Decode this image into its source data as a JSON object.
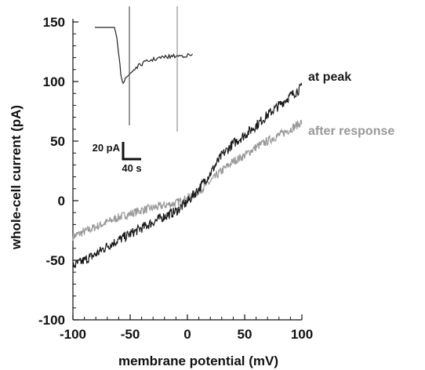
{
  "chart_data": {
    "type": "line",
    "xlabel": "membrane potential (mV)",
    "ylabel": "whole-cell current (pA)",
    "xlim": [
      -100,
      100
    ],
    "ylim": [
      -100,
      150
    ],
    "x_ticks": [
      -100,
      -50,
      0,
      50,
      100
    ],
    "y_ticks": [
      -100,
      -50,
      0,
      50,
      100,
      150
    ],
    "grid": false,
    "series": [
      {
        "name": "at peak",
        "color": "#1a1a1a",
        "x": [
          -100,
          -90,
          -80,
          -70,
          -60,
          -50,
          -40,
          -30,
          -20,
          -10,
          0,
          10,
          20,
          30,
          40,
          50,
          60,
          70,
          80,
          90,
          100
        ],
        "y": [
          -55,
          -50,
          -45,
          -38,
          -33,
          -28,
          -23,
          -18,
          -13,
          -9,
          -1,
          10,
          23,
          38,
          48,
          55,
          63,
          72,
          80,
          88,
          95
        ]
      },
      {
        "name": "after response",
        "color": "#999999",
        "x": [
          -100,
          -90,
          -80,
          -70,
          -60,
          -50,
          -40,
          -30,
          -20,
          -10,
          0,
          10,
          20,
          30,
          40,
          50,
          60,
          70,
          80,
          90,
          100
        ],
        "y": [
          -30,
          -26,
          -22,
          -18,
          -14,
          -11,
          -8,
          -6,
          -4,
          -2,
          2,
          8,
          16,
          25,
          33,
          38,
          45,
          50,
          55,
          60,
          66
        ]
      }
    ],
    "inset": {
      "scale_bar_y_label": "20 pA",
      "scale_bar_x_label": "40 s"
    }
  }
}
